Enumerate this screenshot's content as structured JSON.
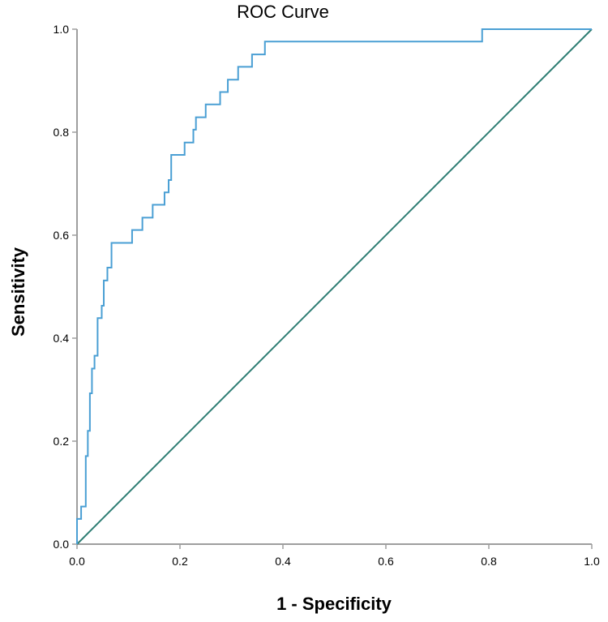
{
  "chart_data": {
    "type": "line",
    "title": "ROC Curve",
    "xlabel": "1 - Specificity",
    "ylabel": "Sensitivity",
    "xlim": [
      0.0,
      1.0
    ],
    "ylim": [
      0.0,
      1.0
    ],
    "x_ticks": [
      "0.0",
      "0.2",
      "0.4",
      "0.6",
      "0.8",
      "1.0"
    ],
    "y_ticks": [
      "0.0",
      "0.2",
      "0.4",
      "0.6",
      "0.8",
      "1.0"
    ],
    "grid": false,
    "series": [
      {
        "name": "ROC",
        "color": "#4a9fd4",
        "points": [
          [
            0.0,
            0.0
          ],
          [
            0.0,
            0.049
          ],
          [
            0.008,
            0.049
          ],
          [
            0.008,
            0.073
          ],
          [
            0.017,
            0.073
          ],
          [
            0.017,
            0.171
          ],
          [
            0.021,
            0.171
          ],
          [
            0.021,
            0.22
          ],
          [
            0.025,
            0.22
          ],
          [
            0.025,
            0.293
          ],
          [
            0.029,
            0.293
          ],
          [
            0.029,
            0.341
          ],
          [
            0.034,
            0.341
          ],
          [
            0.034,
            0.366
          ],
          [
            0.04,
            0.366
          ],
          [
            0.04,
            0.439
          ],
          [
            0.048,
            0.439
          ],
          [
            0.048,
            0.463
          ],
          [
            0.052,
            0.463
          ],
          [
            0.052,
            0.512
          ],
          [
            0.059,
            0.512
          ],
          [
            0.059,
            0.537
          ],
          [
            0.067,
            0.537
          ],
          [
            0.067,
            0.585
          ],
          [
            0.107,
            0.585
          ],
          [
            0.107,
            0.61
          ],
          [
            0.127,
            0.61
          ],
          [
            0.127,
            0.634
          ],
          [
            0.147,
            0.634
          ],
          [
            0.147,
            0.659
          ],
          [
            0.17,
            0.659
          ],
          [
            0.17,
            0.683
          ],
          [
            0.178,
            0.683
          ],
          [
            0.178,
            0.707
          ],
          [
            0.183,
            0.707
          ],
          [
            0.183,
            0.756
          ],
          [
            0.209,
            0.756
          ],
          [
            0.209,
            0.78
          ],
          [
            0.226,
            0.78
          ],
          [
            0.226,
            0.805
          ],
          [
            0.231,
            0.805
          ],
          [
            0.231,
            0.829
          ],
          [
            0.25,
            0.829
          ],
          [
            0.25,
            0.854
          ],
          [
            0.278,
            0.854
          ],
          [
            0.278,
            0.878
          ],
          [
            0.293,
            0.878
          ],
          [
            0.293,
            0.902
          ],
          [
            0.313,
            0.902
          ],
          [
            0.313,
            0.927
          ],
          [
            0.34,
            0.927
          ],
          [
            0.34,
            0.951
          ],
          [
            0.365,
            0.951
          ],
          [
            0.365,
            0.976
          ],
          [
            0.787,
            0.976
          ],
          [
            0.787,
            1.0
          ],
          [
            1.0,
            1.0
          ]
        ]
      },
      {
        "name": "Reference Line",
        "color": "#2e7d73",
        "points": [
          [
            0.0,
            0.0
          ],
          [
            1.0,
            1.0
          ]
        ]
      }
    ]
  }
}
